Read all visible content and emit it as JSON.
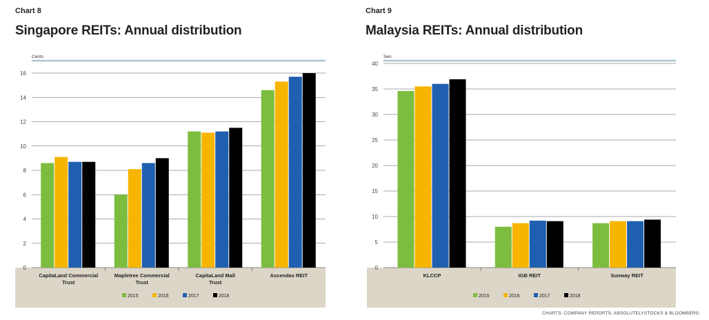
{
  "source_note": "CHARTS: COMPANY REPORTS, ABSOLUTELYSTOCKS & BLOOMBERG",
  "colors": {
    "2015": "#7cbd3f",
    "2016": "#f7b500",
    "2017": "#1f5fb0",
    "2018": "#000000",
    "footer_bg": "#dcd6c8",
    "top_rule": "#a9c6d1"
  },
  "chart_data": [
    {
      "type": "bar",
      "label": "Chart 8",
      "title": "Singapore REITs: Annual distribution",
      "ylabel": "Cents",
      "ylim": [
        0,
        16
      ],
      "yticks": [
        0,
        2,
        4,
        6,
        8,
        10,
        12,
        14,
        16
      ],
      "categories": [
        [
          "CapitaLand Commercial",
          "Trust"
        ],
        [
          "Mapletree Commercial",
          "Trust"
        ],
        [
          "CapitaLand Mall",
          "Trust"
        ],
        [
          "Ascendas REIT"
        ]
      ],
      "series": [
        {
          "name": "2015",
          "color": "#7cbd3f",
          "values": [
            8.6,
            6.0,
            11.2,
            14.6
          ]
        },
        {
          "name": "2016",
          "color": "#f7b500",
          "values": [
            9.1,
            8.1,
            11.1,
            15.3
          ]
        },
        {
          "name": "2017",
          "color": "#1f5fb0",
          "values": [
            8.7,
            8.6,
            11.2,
            15.7
          ]
        },
        {
          "name": "2018",
          "color": "#000000",
          "values": [
            8.7,
            9.0,
            11.5,
            16.0
          ]
        }
      ],
      "legend": "bottom"
    },
    {
      "type": "bar",
      "label": "Chart 9",
      "title": "Malaysia REITs: Annual distribution",
      "ylabel": "Sen",
      "ylim": [
        0,
        40
      ],
      "yticks": [
        0,
        5,
        10,
        15,
        20,
        25,
        30,
        35,
        40
      ],
      "categories": [
        [
          "KLCCP"
        ],
        [
          "IGB REIT"
        ],
        [
          "Sunway REIT"
        ]
      ],
      "series": [
        {
          "name": "2015",
          "color": "#7cbd3f",
          "values": [
            34.6,
            8.0,
            8.7
          ]
        },
        {
          "name": "2016",
          "color": "#f7b500",
          "values": [
            35.5,
            8.7,
            9.1
          ]
        },
        {
          "name": "2017",
          "color": "#1f5fb0",
          "values": [
            36.0,
            9.2,
            9.1
          ]
        },
        {
          "name": "2018",
          "color": "#000000",
          "values": [
            36.9,
            9.1,
            9.4
          ]
        }
      ],
      "legend": "bottom"
    }
  ]
}
